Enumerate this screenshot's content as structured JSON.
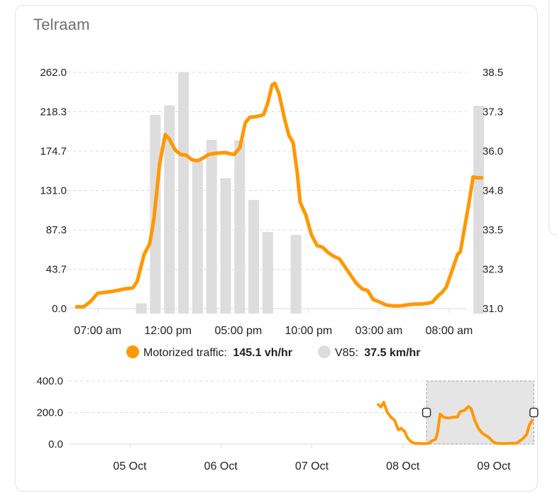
{
  "card": {
    "title": "Telraam"
  },
  "colors": {
    "traffic": "#ff9800",
    "speed": "#dddddd",
    "grid": "#d9d9d9",
    "text": "#212121",
    "muted": "#6f6f6f",
    "brush_fill": "#e5e5e5",
    "brush_border": "#999999"
  },
  "legend": {
    "items": [
      {
        "name": "Motorized traffic:",
        "value": "145.1 vh/hr",
        "color": "#ff9800"
      },
      {
        "name": "V85:",
        "value": "37.5 km/hr",
        "color": "#dddddd"
      }
    ]
  },
  "chart_data": [
    {
      "type": "line",
      "x_unit": "hours",
      "x_range": [
        0,
        26.5
      ],
      "x_ticks": [
        {
          "x": 1.5,
          "label": "07:00 am"
        },
        {
          "x": 6.5,
          "label": "12:00 pm"
        },
        {
          "x": 11.5,
          "label": "05:00 pm"
        },
        {
          "x": 16.5,
          "label": "10:00 pm"
        },
        {
          "x": 21.5,
          "label": "03:00 am"
        },
        {
          "x": 26.5,
          "label": "08:00 am"
        }
      ],
      "y_left": {
        "ylim": [
          0,
          262
        ],
        "ticks": [
          "0.0",
          "43.7",
          "87.3",
          "131.0",
          "174.7",
          "218.3",
          "262.0"
        ]
      },
      "y_right": {
        "ylim": [
          31.0,
          38.5
        ],
        "ticks": [
          "31.0",
          "32.3",
          "33.5",
          "34.8",
          "36.0",
          "37.3",
          "38.5"
        ]
      },
      "grid": true,
      "legend_position": "bottom",
      "series": [
        {
          "name": "Motorized traffic",
          "axis": "left",
          "values": [
            [
              0.0,
              2
            ],
            [
              0.5,
              2
            ],
            [
              1.0,
              8
            ],
            [
              1.5,
              17
            ],
            [
              2.5,
              19
            ],
            [
              3.5,
              22
            ],
            [
              4.0,
              23
            ],
            [
              4.3,
              30
            ],
            [
              4.8,
              60
            ],
            [
              5.2,
              72
            ],
            [
              5.5,
              100
            ],
            [
              5.9,
              160
            ],
            [
              6.3,
              193
            ],
            [
              6.6,
              188
            ],
            [
              7.0,
              176
            ],
            [
              7.4,
              171
            ],
            [
              7.8,
              170
            ],
            [
              8.2,
              165
            ],
            [
              8.6,
              164
            ],
            [
              9.0,
              167
            ],
            [
              9.4,
              171
            ],
            [
              9.8,
              172
            ],
            [
              10.5,
              173
            ],
            [
              11.2,
              171
            ],
            [
              11.6,
              178
            ],
            [
              12.0,
              206
            ],
            [
              12.3,
              212
            ],
            [
              12.8,
              213
            ],
            [
              13.3,
              215
            ],
            [
              13.6,
              228
            ],
            [
              13.9,
              248
            ],
            [
              14.1,
              250
            ],
            [
              14.4,
              238
            ],
            [
              14.8,
              210
            ],
            [
              15.1,
              192
            ],
            [
              15.4,
              184
            ],
            [
              15.7,
              150
            ],
            [
              15.9,
              118
            ],
            [
              16.3,
              104
            ],
            [
              16.7,
              82
            ],
            [
              17.1,
              70
            ],
            [
              17.5,
              68
            ],
            [
              17.9,
              62
            ],
            [
              18.3,
              58
            ],
            [
              18.7,
              55
            ],
            [
              19.1,
              46
            ],
            [
              19.5,
              37
            ],
            [
              19.9,
              28
            ],
            [
              20.3,
              22
            ],
            [
              20.7,
              20
            ],
            [
              21.1,
              10
            ],
            [
              21.6,
              7
            ],
            [
              22.0,
              4
            ],
            [
              22.5,
              3
            ],
            [
              23.0,
              3
            ],
            [
              23.5,
              4
            ],
            [
              24.0,
              5
            ],
            [
              24.5,
              5
            ],
            [
              25.0,
              6
            ],
            [
              25.3,
              7
            ],
            [
              25.7,
              14
            ],
            [
              26.0,
              18
            ],
            [
              26.3,
              24
            ],
            [
              26.7,
              42
            ],
            [
              27.1,
              60
            ],
            [
              27.3,
              63
            ],
            [
              27.6,
              90
            ],
            [
              27.9,
              116
            ],
            [
              28.2,
              146
            ],
            [
              28.5,
              145.1
            ],
            [
              28.8,
              145.1
            ]
          ]
        },
        {
          "name": "V85",
          "axis": "right",
          "type": "bar",
          "values": [
            [
              4.6,
              31.17
            ],
            [
              5.6,
              37.15
            ],
            [
              6.6,
              37.45
            ],
            [
              7.6,
              38.5
            ],
            [
              8.6,
              35.69
            ],
            [
              9.6,
              36.36
            ],
            [
              10.6,
              35.14
            ],
            [
              11.6,
              36.34
            ],
            [
              12.6,
              34.45
            ],
            [
              13.6,
              33.43
            ],
            [
              15.6,
              33.34
            ],
            [
              28.6,
              37.44
            ]
          ]
        }
      ]
    },
    {
      "type": "line",
      "role": "navigator",
      "x_unit": "days",
      "x_ticks": [
        {
          "x": 1.0,
          "label": "05 Oct"
        },
        {
          "x": 2.0,
          "label": "06 Oct"
        },
        {
          "x": 3.0,
          "label": "07 Oct"
        },
        {
          "x": 4.0,
          "label": "08 Oct"
        },
        {
          "x": 5.0,
          "label": "09 Oct"
        }
      ],
      "y": {
        "ylim": [
          0,
          400
        ],
        "ticks": [
          "0.0",
          "200.0",
          "400.0"
        ]
      },
      "grid": true,
      "selection": [
        4.26,
        5.44
      ],
      "series": [
        {
          "name": "Motorized traffic",
          "values": [
            [
              3.73,
              250
            ],
            [
              3.76,
              235
            ],
            [
              3.79,
              265
            ],
            [
              3.83,
              200
            ],
            [
              3.87,
              170
            ],
            [
              3.91,
              150
            ],
            [
              3.95,
              90
            ],
            [
              3.98,
              100
            ],
            [
              4.02,
              80
            ],
            [
              4.05,
              40
            ],
            [
              4.09,
              15
            ],
            [
              4.13,
              5
            ],
            [
              4.2,
              3
            ],
            [
              4.28,
              4
            ],
            [
              4.32,
              20
            ],
            [
              4.36,
              30
            ],
            [
              4.38,
              70
            ],
            [
              4.41,
              190
            ],
            [
              4.45,
              170
            ],
            [
              4.5,
              165
            ],
            [
              4.55,
              170
            ],
            [
              4.6,
              172
            ],
            [
              4.63,
              205
            ],
            [
              4.68,
              215
            ],
            [
              4.72,
              238
            ],
            [
              4.75,
              225
            ],
            [
              4.79,
              150
            ],
            [
              4.83,
              100
            ],
            [
              4.87,
              70
            ],
            [
              4.91,
              55
            ],
            [
              4.95,
              40
            ],
            [
              4.99,
              15
            ],
            [
              5.03,
              5
            ],
            [
              5.1,
              3
            ],
            [
              5.2,
              5
            ],
            [
              5.25,
              6
            ],
            [
              5.31,
              30
            ],
            [
              5.36,
              60
            ],
            [
              5.39,
              120
            ],
            [
              5.42,
              150
            ]
          ]
        }
      ]
    }
  ]
}
